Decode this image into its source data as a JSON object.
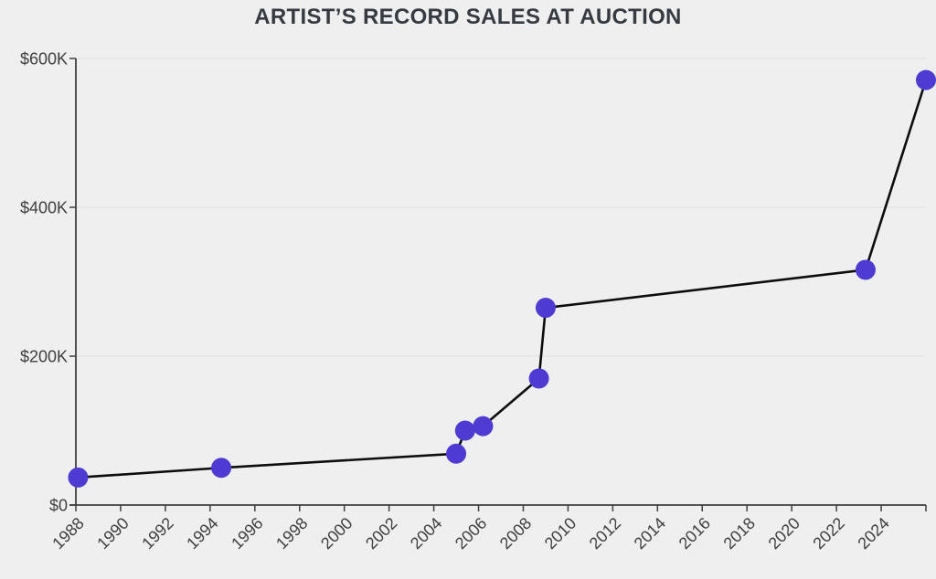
{
  "page": {
    "background": "#efefef"
  },
  "chart_data": {
    "type": "line",
    "title": "ARTIST’S RECORD SALES AT AUCTION",
    "xlabel": "",
    "ylabel": "",
    "xlim": [
      1988,
      2026
    ],
    "ylim": [
      0,
      600000
    ],
    "grid": "horizontal",
    "legend": "none",
    "points": [
      {
        "year": 1988.1,
        "value": 37000
      },
      {
        "year": 1994.5,
        "value": 50000
      },
      {
        "year": 2005.0,
        "value": 69000
      },
      {
        "year": 2005.4,
        "value": 100000
      },
      {
        "year": 2006.2,
        "value": 106000
      },
      {
        "year": 2008.7,
        "value": 170000
      },
      {
        "year": 2009.0,
        "value": 265000
      },
      {
        "year": 2023.3,
        "value": 316000
      },
      {
        "year": 2026.0,
        "value": 571000
      }
    ],
    "x_ticks": [
      {
        "year": 1988,
        "label": "1988"
      },
      {
        "year": 1990,
        "label": "1990"
      },
      {
        "year": 1992,
        "label": "1992"
      },
      {
        "year": 1994,
        "label": "1994"
      },
      {
        "year": 1996,
        "label": "1996"
      },
      {
        "year": 1998,
        "label": "1998"
      },
      {
        "year": 2000,
        "label": "2000"
      },
      {
        "year": 2002,
        "label": "2002"
      },
      {
        "year": 2004,
        "label": "2004"
      },
      {
        "year": 2006,
        "label": "2006"
      },
      {
        "year": 2008,
        "label": "2008"
      },
      {
        "year": 2010,
        "label": "2010"
      },
      {
        "year": 2012,
        "label": "2012"
      },
      {
        "year": 2014,
        "label": "2014"
      },
      {
        "year": 2016,
        "label": "2016"
      },
      {
        "year": 2018,
        "label": "2018"
      },
      {
        "year": 2020,
        "label": "2020"
      },
      {
        "year": 2022,
        "label": "2022"
      },
      {
        "year": 2024,
        "label": "2024"
      },
      {
        "year": 2026,
        "label": ""
      }
    ],
    "y_ticks": [
      {
        "value": 0,
        "label": "$0"
      },
      {
        "value": 200000,
        "label": "$200K"
      },
      {
        "value": 400000,
        "label": "$400K"
      },
      {
        "value": 600000,
        "label": "$600K"
      }
    ],
    "colors": {
      "background": "#efefef",
      "line": "#0d0d0d",
      "point": "#4e3bd2",
      "grid": "#e2e2e2",
      "axis": "#3f3f3f",
      "tick_text": "#3f3f3f",
      "title_text": "#353b41"
    }
  }
}
